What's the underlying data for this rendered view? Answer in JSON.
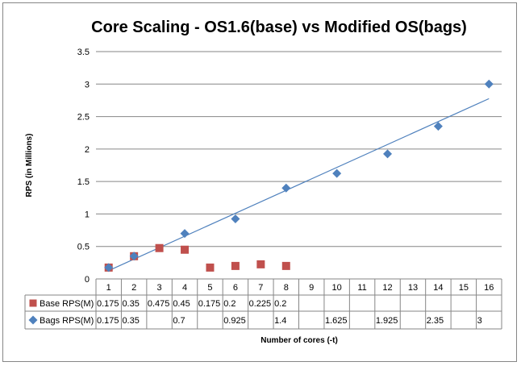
{
  "chart_data": {
    "type": "scatter",
    "title": "Core Scaling - OS1.6(base) vs Modified OS(bags)",
    "xlabel": "Number of cores (-t)",
    "ylabel": "RPS (in Millions)",
    "ylim": [
      0,
      3.5
    ],
    "yticks": [
      "0",
      "0.5",
      "1",
      "1.5",
      "2",
      "2.5",
      "3",
      "3.5"
    ],
    "categories": [
      "1",
      "2",
      "3",
      "4",
      "5",
      "6",
      "7",
      "8",
      "9",
      "10",
      "11",
      "12",
      "13",
      "14",
      "15",
      "16"
    ],
    "grid": true,
    "legend": "data-table",
    "series": [
      {
        "name": "Base RPS(M)",
        "color": "#c0504d",
        "marker": "square",
        "values": [
          0.175,
          0.35,
          0.475,
          0.45,
          0.175,
          0.2,
          0.225,
          0.2,
          null,
          null,
          null,
          null,
          null,
          null,
          null,
          null
        ],
        "labels": [
          "0.175",
          "0.35",
          "0.475",
          "0.45",
          "0.175",
          "0.2",
          "0.225",
          "0.2",
          "",
          "",
          "",
          "",
          "",
          "",
          "",
          ""
        ]
      },
      {
        "name": "Bags RPS(M)",
        "color": "#4f81bd",
        "marker": "diamond",
        "values": [
          0.175,
          0.35,
          null,
          0.7,
          null,
          0.925,
          null,
          1.4,
          null,
          1.625,
          null,
          1.925,
          null,
          2.35,
          null,
          3
        ],
        "labels": [
          "0.175",
          "0.35",
          "",
          "0.7",
          "",
          "0.925",
          "",
          "1.4",
          "",
          "1.625",
          "",
          "1.925",
          "",
          "2.35",
          "",
          "3"
        ]
      }
    ],
    "trendline": {
      "series": "Bags RPS(M)",
      "type": "linear",
      "color": "#4f81bd"
    }
  }
}
